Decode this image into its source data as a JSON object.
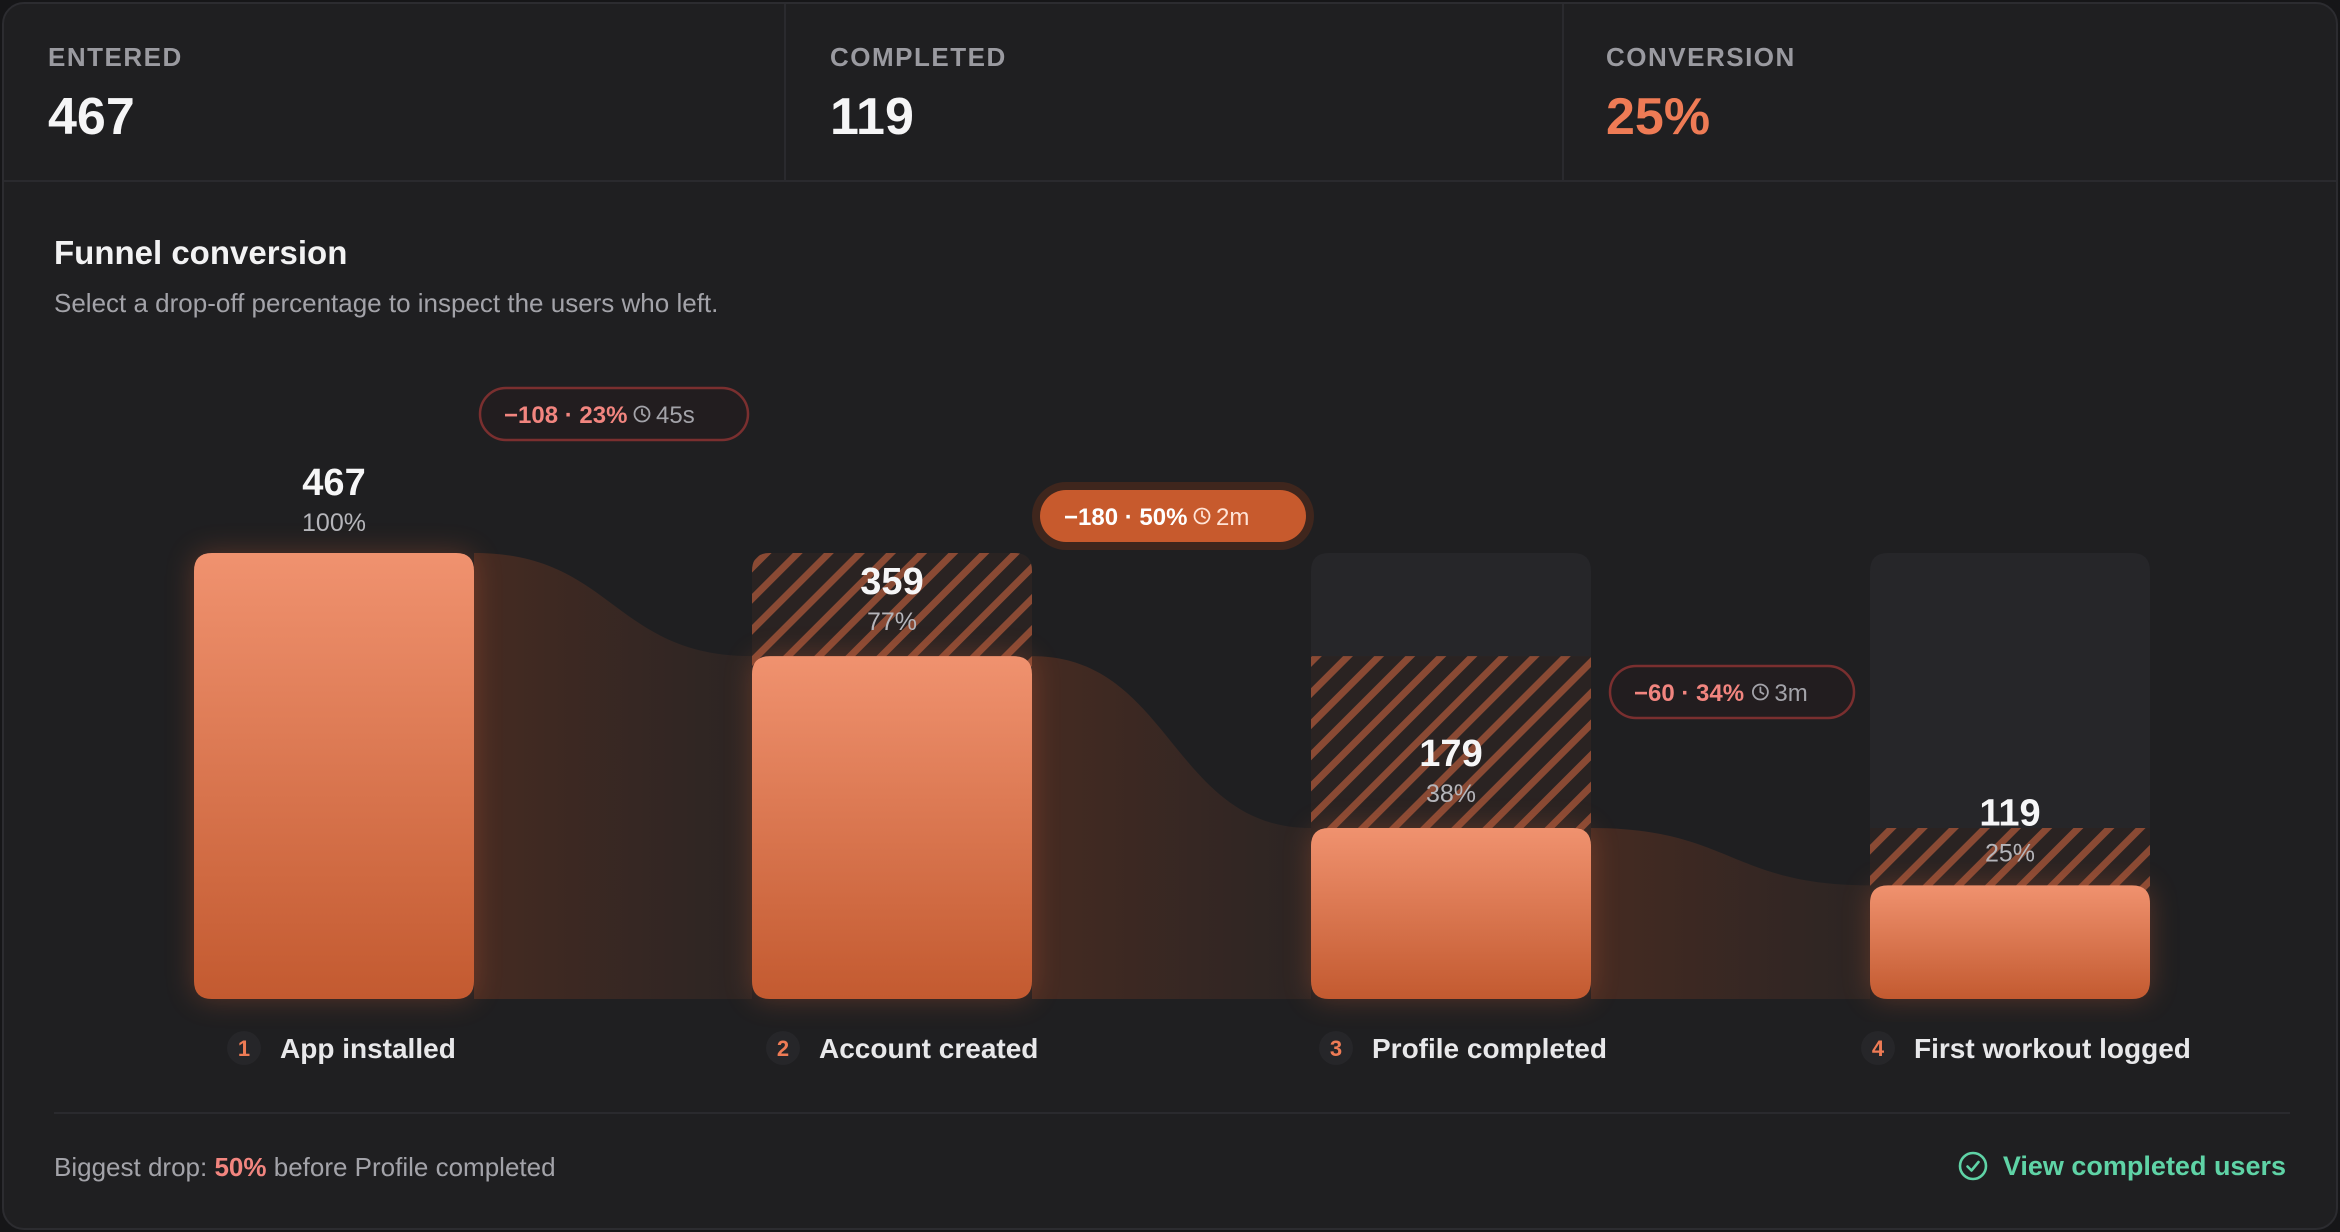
{
  "stats": [
    {
      "label": "ENTERED",
      "value": "467"
    },
    {
      "label": "COMPLETED",
      "value": "119"
    },
    {
      "label": "CONVERSION",
      "value": "25%"
    }
  ],
  "title": "Funnel conversion",
  "subtitle": "Select a drop-off percentage to inspect the users who left.",
  "footer": {
    "prefix": "Biggest drop:",
    "highlight": "50%",
    "suffix": "before Profile completed",
    "button_label": "View completed users",
    "button_icon": "check-circle-icon"
  },
  "colors": {
    "accent": "#ee7b55",
    "bar_top": "#f0926f",
    "bar_bottom": "#c35a30",
    "drop_text": "#f2857f",
    "success": "#5fd3a6"
  },
  "chart_data": {
    "type": "bar",
    "categories": [
      "App installed",
      "Account created",
      "Profile completed",
      "First workout logged"
    ],
    "stage_numbers": [
      "1",
      "2",
      "3",
      "4"
    ],
    "values": [
      467,
      359,
      179,
      119
    ],
    "value_labels": [
      "467",
      "359",
      "179",
      "119"
    ],
    "percent_labels": [
      "100%",
      "77%",
      "38%",
      "25%"
    ],
    "ylim": [
      0,
      467
    ],
    "drops": [
      {
        "text": "−108 · 23%",
        "time": "45s",
        "active": false
      },
      {
        "text": "−180 · 50%",
        "time": "2m",
        "active": true
      },
      {
        "text": "−60 · 34%",
        "time": "3m",
        "active": false
      }
    ]
  }
}
